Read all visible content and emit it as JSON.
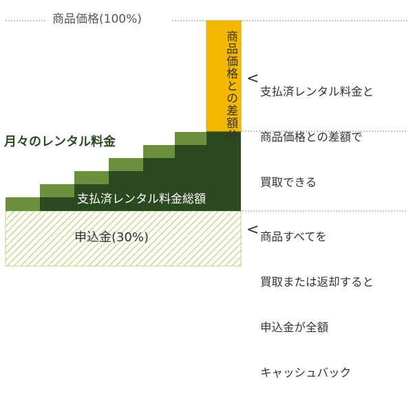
{
  "top_label": "商品価格(100%)",
  "monthly_label": "月々のレンタル料金",
  "total_label": "支払済レンタル料金総額",
  "deposit_label": "申込金(30%)",
  "gap_label": "商品価格との差額分",
  "note_upper": {
    "chevron": "<",
    "lines": [
      "支払済レンタル料金と",
      "商品価格との差額で",
      "買取できる"
    ]
  },
  "note_lower": {
    "chevron": "<",
    "lines": [
      "商品すべてを",
      "買取または返却すると",
      "申込金が全額",
      "キャッシュバック"
    ]
  },
  "colors": {
    "step_light": "#6b8f3a",
    "step_dark": "#2c4a1f",
    "gap_fill": "#f5b800",
    "hatch": "#c9d88e"
  }
}
